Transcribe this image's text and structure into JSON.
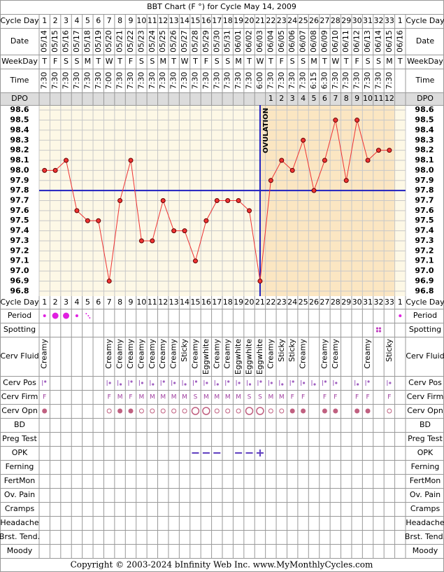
{
  "title": "BBT Chart (F °) for Cycle May 14, 2009",
  "footer": "Copyright © 2003-2024 bInfinity Web Inc.    www.MyMonthlyCycles.com",
  "ovulation_label": "OVULATION",
  "row_labels": [
    "Cycle Day",
    "Date",
    "WeekDay",
    "Time",
    "DPO",
    "Cycle Day",
    "Period",
    "Spotting",
    "Cerv Fluid",
    "Cerv Pos",
    "Cerv Firm",
    "Cerv Opn",
    "BD",
    "Preg Test",
    "OPK",
    "Ferning",
    "FertMon",
    "Ov. Pain",
    "Cramps",
    "Headache",
    "Brst. Tend.",
    "Moody"
  ],
  "cycle_days": [
    1,
    2,
    3,
    4,
    5,
    6,
    7,
    8,
    9,
    10,
    11,
    12,
    13,
    14,
    15,
    16,
    17,
    18,
    19,
    20,
    21,
    22,
    23,
    24,
    25,
    26,
    27,
    28,
    29,
    30,
    31,
    32,
    33,
    1
  ],
  "dates": [
    "05/14",
    "05/15",
    "05/16",
    "05/17",
    "05/18",
    "05/19",
    "05/20",
    "05/21",
    "05/22",
    "05/23",
    "05/24",
    "05/25",
    "05/26",
    "05/27",
    "05/28",
    "05/29",
    "05/30",
    "05/31",
    "06/01",
    "06/02",
    "06/03",
    "06/04",
    "06/05",
    "06/06",
    "06/07",
    "06/08",
    "06/09",
    "06/10",
    "06/11",
    "06/12",
    "06/13",
    "06/14",
    "06/15",
    "06/16"
  ],
  "weekdays": [
    "T",
    "F",
    "S",
    "S",
    "M",
    "T",
    "W",
    "T",
    "F",
    "S",
    "S",
    "M",
    "T",
    "W",
    "T",
    "F",
    "S",
    "S",
    "M",
    "T",
    "W",
    "T",
    "F",
    "S",
    "S",
    "M",
    "T",
    "W",
    "T",
    "F",
    "S",
    "S",
    "M",
    "T"
  ],
  "times": [
    "7:30",
    "7:30",
    "7:30",
    "7:30",
    "7:30",
    "7:30",
    "7:00",
    "7:30",
    "7:30",
    "7:30",
    "7:30",
    "7:30",
    "7:30",
    "7:30",
    "7:30",
    "7:30",
    "7:30",
    "7:30",
    "7:30",
    "7:30",
    "6:00",
    "7:30",
    "7:30",
    "7:30",
    "7:30",
    "6:15",
    "6:30",
    "7:30",
    "7:30",
    "7:30",
    "7:30",
    "7:30",
    "7:30",
    null
  ],
  "dpo": [
    null,
    null,
    null,
    null,
    null,
    null,
    null,
    null,
    null,
    null,
    null,
    null,
    null,
    null,
    null,
    null,
    null,
    null,
    null,
    null,
    null,
    1,
    2,
    3,
    4,
    5,
    6,
    7,
    8,
    9,
    10,
    11,
    12,
    null
  ],
  "cerv_fluid": [
    "Creamy",
    null,
    null,
    null,
    null,
    null,
    "Creamy",
    "Creamy",
    "Creamy",
    "Creamy",
    "Creamy",
    "Creamy",
    "Creamy",
    "Sticky",
    "Creamy",
    "Eggwhite",
    "Creamy",
    "Creamy",
    "Eggwhite",
    "Eggwhite",
    "Eggwhite",
    "Creamy",
    "Sticky",
    "Sticky",
    "Creamy",
    null,
    "Creamy",
    "Creamy",
    null,
    null,
    "Creamy",
    null,
    "Sticky",
    null
  ],
  "cerv_firm": [
    "F",
    null,
    null,
    null,
    null,
    null,
    "F",
    "M",
    "F",
    "M",
    "M",
    "M",
    "M",
    "M",
    "S",
    "M",
    "M",
    "M",
    "M",
    "S",
    "S",
    "M",
    "M",
    "F",
    "F",
    null,
    "F",
    "F",
    null,
    "F",
    "F",
    null,
    "F",
    null
  ],
  "chart_data": {
    "type": "line",
    "series": [
      {
        "color": "#ee3333",
        "values": [
          98.0,
          98.0,
          98.1,
          97.6,
          97.5,
          97.5,
          96.9,
          97.7,
          98.1,
          97.3,
          97.3,
          97.7,
          97.4,
          97.4,
          97.1,
          97.5,
          97.7,
          97.7,
          97.7,
          97.6,
          96.9,
          97.9,
          98.1,
          98.0,
          98.3,
          97.8,
          98.1,
          98.5,
          97.9,
          98.5,
          98.1,
          98.2,
          98.2,
          null
        ]
      }
    ],
    "ylim": [
      96.75,
      98.65
    ],
    "yticks": [
      98.6,
      98.5,
      98.4,
      98.3,
      98.2,
      98.1,
      {
        "value": 98.0,
        "label": "98.0"
      },
      97.9,
      97.8,
      97.7,
      97.6,
      97.5,
      97.4,
      97.3,
      97.2,
      97.1,
      {
        "value": 97.0,
        "label": "97.0"
      },
      96.9,
      96.8
    ],
    "coverline": 97.8,
    "ovulation_day": 21,
    "grid": true
  }
}
